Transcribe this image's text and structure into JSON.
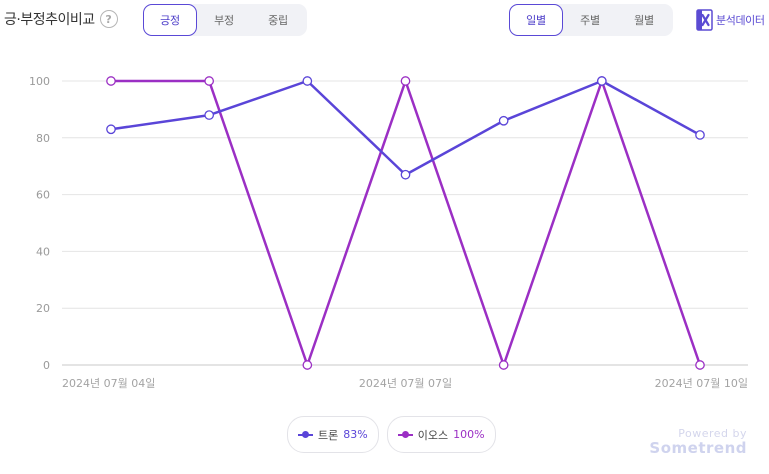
{
  "header": {
    "title": "긍·부정추이비교",
    "help_glyph": "?",
    "sentiment_tabs": [
      {
        "label": "긍정",
        "active": true
      },
      {
        "label": "부정",
        "active": false
      },
      {
        "label": "중립",
        "active": false
      }
    ],
    "period_tabs": [
      {
        "label": "일별",
        "active": true
      },
      {
        "label": "주별",
        "active": false
      },
      {
        "label": "월별",
        "active": false
      }
    ],
    "export_label": "분석데이터",
    "export_icon": "excel-icon",
    "accent_color": "#5a49d6"
  },
  "chart_data": {
    "type": "line",
    "x": [
      "2024-07-04",
      "2024-07-05",
      "2024-07-06",
      "2024-07-07",
      "2024-07-08",
      "2024-07-09",
      "2024-07-10"
    ],
    "x_tick_labels": [
      {
        "index": 0,
        "label": "2024년 07월 04일"
      },
      {
        "index": 3,
        "label": "2024년 07월 07일"
      },
      {
        "index": 6,
        "label": "2024년 07월 10일"
      }
    ],
    "y_ticks": [
      0,
      20,
      40,
      60,
      80,
      100
    ],
    "ylim": [
      0,
      100
    ],
    "grid": true,
    "series": [
      {
        "name": "트론",
        "color": "#5a45d8",
        "values": [
          83,
          88,
          100,
          67,
          86,
          100,
          81
        ]
      },
      {
        "name": "이오스",
        "color": "#9b2fc4",
        "values": [
          100,
          100,
          0,
          100,
          0,
          100,
          0
        ]
      }
    ],
    "legend_placement": "bottom-center"
  },
  "legend": [
    {
      "name": "트론",
      "value": "83%",
      "color": "#5a45d8"
    },
    {
      "name": "이오스",
      "value": "100%",
      "color": "#9b2fc4"
    }
  ],
  "footer": {
    "powered_by": "Powered by",
    "brand": "Sometrend"
  }
}
